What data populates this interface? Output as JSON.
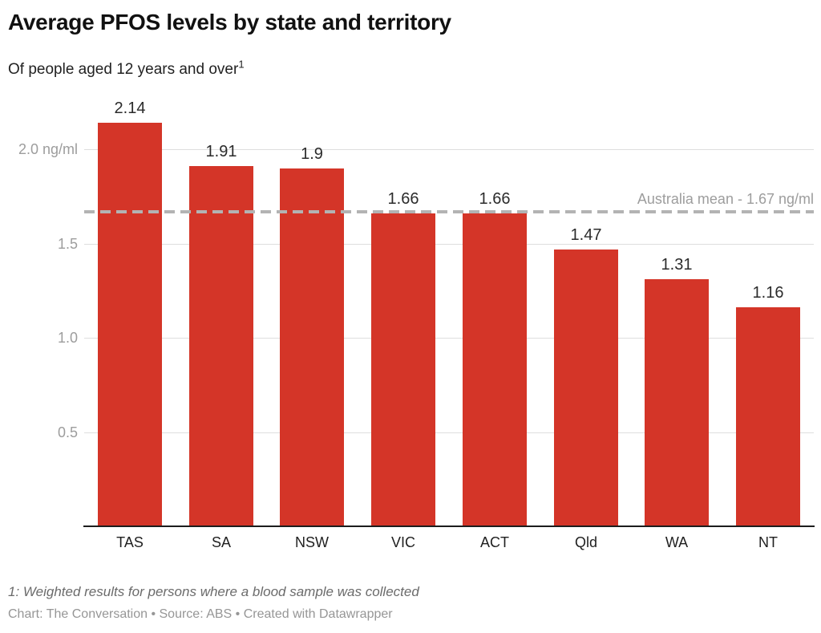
{
  "header": {
    "title": "Average PFOS levels by state and territory",
    "subtitle": "Of people aged 12 years and over",
    "footnote_marker": "1"
  },
  "chart_data": {
    "type": "bar",
    "title": "Average PFOS levels by state and territory",
    "subtitle": "Of people aged 12 years and over",
    "categories": [
      "TAS",
      "SA",
      "NSW",
      "VIC",
      "ACT",
      "Qld",
      "WA",
      "NT"
    ],
    "values": [
      2.14,
      1.91,
      1.9,
      1.66,
      1.66,
      1.47,
      1.31,
      1.16
    ],
    "value_labels": [
      "2.14",
      "1.91",
      "1.9",
      "1.66",
      "1.66",
      "1.47",
      "1.31",
      "1.16"
    ],
    "unit": "ng/ml",
    "xlabel": "",
    "ylabel": "ng/ml",
    "ylim": [
      0,
      2.25
    ],
    "y_ticks": [
      0.5,
      1.0,
      1.5,
      2.0
    ],
    "y_tick_labels": [
      "0.5",
      "1.0",
      "1.5",
      "2.0 ng/ml"
    ],
    "grid": true,
    "legend": "none",
    "reference_line": {
      "value": 1.67,
      "label": "Australia mean - 1.67 ng/ml"
    },
    "colors": {
      "bar": "#d43528",
      "gridline": "#dedede",
      "axis_line": "#1d1d1d",
      "y_tick_label": "#9d9d9d",
      "x_tick_label": "#1f1f1f",
      "value_label": "#2b2b2b",
      "mean_line": "#b3b3b3",
      "mean_label": "#9d9d9d"
    }
  },
  "footer": {
    "footnote": "1: Weighted results for persons where a blood sample was collected",
    "attribution": "Chart: The Conversation • Source: ABS • Created with Datawrapper"
  }
}
